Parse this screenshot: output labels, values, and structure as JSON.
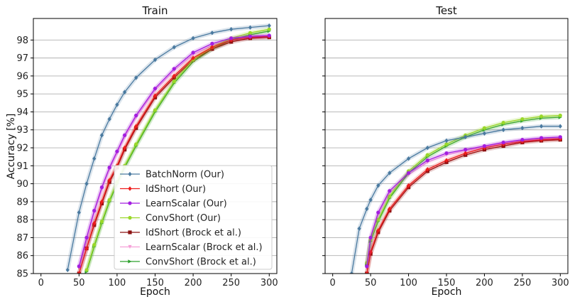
{
  "chart_data": {
    "type": "line",
    "ylabel": "Accuracy [%]",
    "legend_placement": "lower-right (left panel)",
    "grid": "horizontal",
    "series": [
      {
        "name": "BatchNorm (Our)",
        "color": "#4a7aa0",
        "marker": "diamond"
      },
      {
        "name": "IdShort (Our)",
        "color": "#ee1c1c",
        "marker": "diamond"
      },
      {
        "name": "LearnScalar (Our)",
        "color": "#a31ee0",
        "marker": "circle"
      },
      {
        "name": "ConvShort (Our)",
        "color": "#9ad82a",
        "marker": "circle"
      },
      {
        "name": "IdShort (Brock et al.)",
        "color": "#8b1010",
        "marker": "square"
      },
      {
        "name": "LearnScalar (Brock et al.)",
        "color": "#f5a0d8",
        "marker": "triangle-down"
      },
      {
        "name": "ConvShort (Brock et al.)",
        "color": "#2ca02c",
        "marker": "triangle-right"
      }
    ],
    "panels": [
      {
        "title": "Train",
        "xlabel": "Epoch",
        "xlim": [
          -10,
          310
        ],
        "ylim": [
          85,
          99.2
        ],
        "xticks": [
          0,
          50,
          100,
          150,
          200,
          250,
          300
        ],
        "yticks": [
          85,
          86,
          87,
          88,
          89,
          90,
          91,
          92,
          93,
          94,
          95,
          96,
          97,
          98
        ],
        "x": [
          35,
          50,
          60,
          70,
          80,
          90,
          100,
          110,
          125,
          150,
          175,
          200,
          225,
          250,
          275,
          300
        ],
        "values": {
          "BatchNorm (Our)": [
            85.2,
            88.4,
            90.0,
            91.4,
            92.7,
            93.6,
            94.4,
            95.1,
            95.9,
            96.9,
            97.6,
            98.1,
            98.4,
            98.6,
            98.7,
            98.8
          ],
          "IdShort (Our)": [
            null,
            85.0,
            86.4,
            87.8,
            89.0,
            90.2,
            91.0,
            92.0,
            93.2,
            94.9,
            96.0,
            97.0,
            97.6,
            98.0,
            98.15,
            98.2
          ],
          "LearnScalar (Our)": [
            null,
            85.4,
            87.0,
            88.5,
            89.8,
            90.9,
            91.8,
            92.7,
            93.8,
            95.3,
            96.4,
            97.3,
            97.8,
            98.1,
            98.2,
            98.25
          ],
          "ConvShort (Our)": [
            null,
            null,
            85.2,
            86.6,
            87.9,
            89.1,
            90.1,
            91.0,
            92.2,
            94.1,
            95.7,
            96.9,
            97.6,
            98.1,
            98.4,
            98.6
          ],
          "IdShort (Brock et al.)": [
            null,
            85.0,
            86.4,
            87.7,
            88.9,
            90.1,
            90.9,
            91.9,
            93.1,
            94.8,
            95.9,
            96.9,
            97.5,
            97.9,
            98.1,
            98.15
          ],
          "LearnScalar (Brock et al.)": [
            null,
            85.3,
            86.9,
            88.4,
            89.7,
            90.8,
            91.7,
            92.6,
            93.7,
            95.2,
            96.3,
            97.2,
            97.7,
            98.0,
            98.15,
            98.2
          ],
          "ConvShort (Brock et al.)": [
            null,
            null,
            85.1,
            86.5,
            87.8,
            89.0,
            90.0,
            90.9,
            92.1,
            94.0,
            95.6,
            96.8,
            97.5,
            98.0,
            98.3,
            98.5
          ]
        }
      },
      {
        "title": "Test",
        "xlabel": "Epoch",
        "xlim": [
          -10,
          310
        ],
        "ylim": [
          85,
          99.2
        ],
        "xticks": [
          0,
          50,
          100,
          150,
          200,
          250,
          300
        ],
        "x": [
          25,
          35,
          45,
          50,
          60,
          75,
          100,
          125,
          150,
          175,
          200,
          225,
          250,
          275,
          300
        ],
        "values": {
          "BatchNorm (Our)": [
            85.0,
            87.5,
            88.6,
            89.1,
            89.9,
            90.6,
            91.4,
            92.0,
            92.4,
            92.6,
            92.8,
            93.0,
            93.1,
            93.2,
            93.2
          ],
          "IdShort (Our)": [
            null,
            null,
            85.0,
            86.2,
            87.4,
            88.6,
            89.9,
            90.8,
            91.3,
            91.7,
            92.0,
            92.2,
            92.35,
            92.45,
            92.5
          ],
          "LearnScalar (Our)": [
            null,
            null,
            85.4,
            87.0,
            88.4,
            89.6,
            90.6,
            91.3,
            91.7,
            91.9,
            92.1,
            92.3,
            92.45,
            92.55,
            92.6
          ],
          "ConvShort (Our)": [
            null,
            null,
            85.6,
            86.9,
            88.0,
            89.3,
            90.7,
            91.6,
            92.2,
            92.7,
            93.1,
            93.4,
            93.6,
            93.75,
            93.8
          ],
          "IdShort (Brock et al.)": [
            null,
            null,
            85.0,
            86.1,
            87.3,
            88.5,
            89.8,
            90.7,
            91.2,
            91.6,
            91.9,
            92.1,
            92.3,
            92.4,
            92.45
          ],
          "LearnScalar (Brock et al.)": [
            null,
            null,
            85.3,
            86.9,
            88.3,
            89.5,
            90.5,
            91.2,
            91.6,
            91.85,
            92.05,
            92.25,
            92.4,
            92.5,
            92.55
          ],
          "ConvShort (Brock et al.)": [
            null,
            null,
            85.5,
            86.8,
            87.9,
            89.2,
            90.6,
            91.5,
            92.1,
            92.6,
            93.0,
            93.3,
            93.5,
            93.65,
            93.7
          ]
        }
      }
    ]
  }
}
